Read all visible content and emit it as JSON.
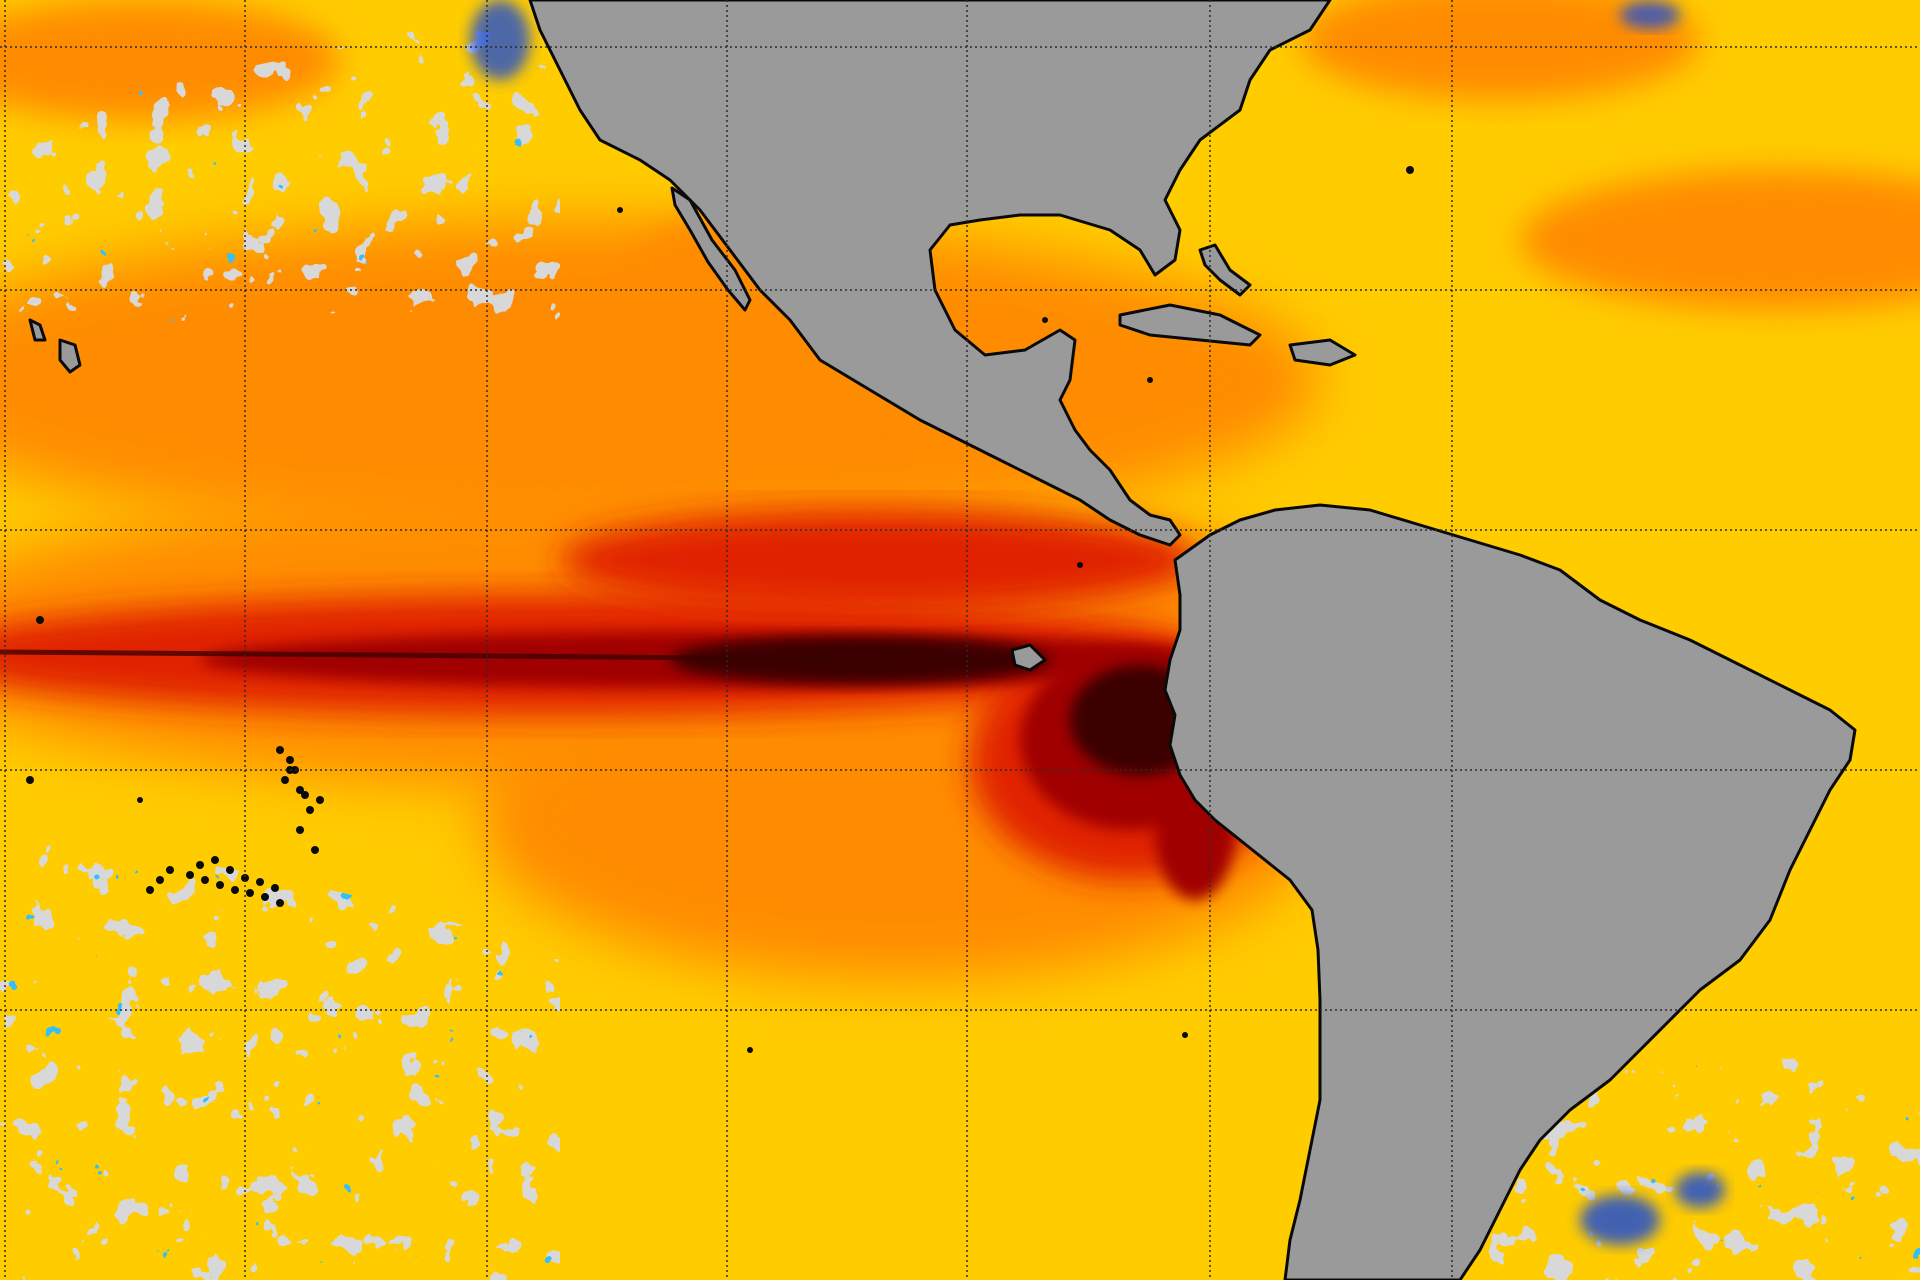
{
  "map": {
    "kind": "sea-surface-temperature-anomaly",
    "text_labels": [],
    "colors": {
      "land": "#9a9a9a",
      "coast_outline": "#0a0a0a",
      "gridline": "#2b2b2b",
      "anomaly_very_hot": "#3a0000",
      "anomaly_hot": "#a00000",
      "anomaly_warm_red": "#e02000",
      "anomaly_warm_orange": "#ff8c00",
      "anomaly_mild_warm": "#ffcc00",
      "anomaly_slight_warm": "#fff04a",
      "anomaly_neutral": "#d8d8d8",
      "anomaly_cool": "#32bfff",
      "anomaly_cold": "#2050d0"
    },
    "features": [
      "el-nino-equatorial-warm-tongue",
      "north-america",
      "central-america",
      "south-america",
      "caribbean-islands",
      "hawaii-islands",
      "galapagos-islands",
      "polynesia-islands"
    ],
    "graticule": {
      "dashed": true
    }
  }
}
